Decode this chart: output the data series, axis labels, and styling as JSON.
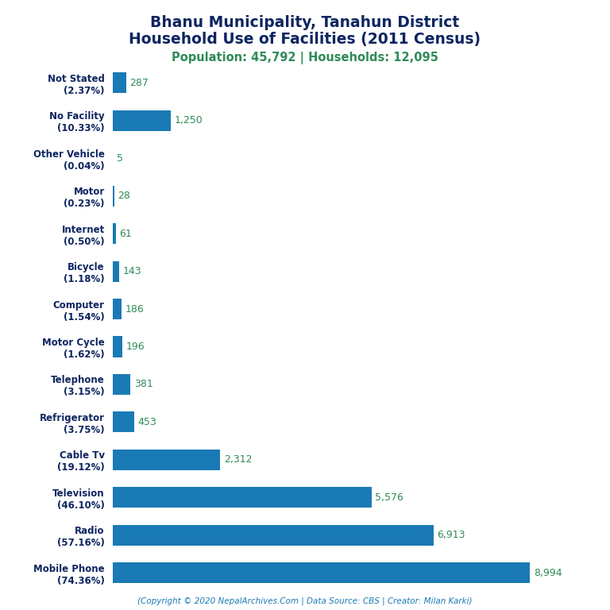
{
  "title_line1": "Bhanu Municipality, Tanahun District",
  "title_line2": "Household Use of Facilities (2011 Census)",
  "subtitle": "Population: 45,792 | Households: 12,095",
  "footer": "(Copyright © 2020 NepalArchives.Com | Data Source: CBS | Creator: Milan Karki)",
  "categories": [
    "Mobile Phone\n(74.36%)",
    "Radio\n(57.16%)",
    "Television\n(46.10%)",
    "Cable Tv\n(19.12%)",
    "Refrigerator\n(3.75%)",
    "Telephone\n(3.15%)",
    "Motor Cycle\n(1.62%)",
    "Computer\n(1.54%)",
    "Bicycle\n(1.18%)",
    "Internet\n(0.50%)",
    "Motor\n(0.23%)",
    "Other Vehicle\n(0.04%)",
    "No Facility\n(10.33%)",
    "Not Stated\n(2.37%)"
  ],
  "values": [
    8994,
    6913,
    5576,
    2312,
    453,
    381,
    196,
    186,
    143,
    61,
    28,
    5,
    1250,
    287
  ],
  "bar_color": "#1a7ab5",
  "value_color": "#2e8b57",
  "title_color": "#0d2560",
  "subtitle_color": "#2e8b57",
  "footer_color": "#1a7ab5",
  "background_color": "#ffffff",
  "xlim": [
    0,
    9800
  ]
}
